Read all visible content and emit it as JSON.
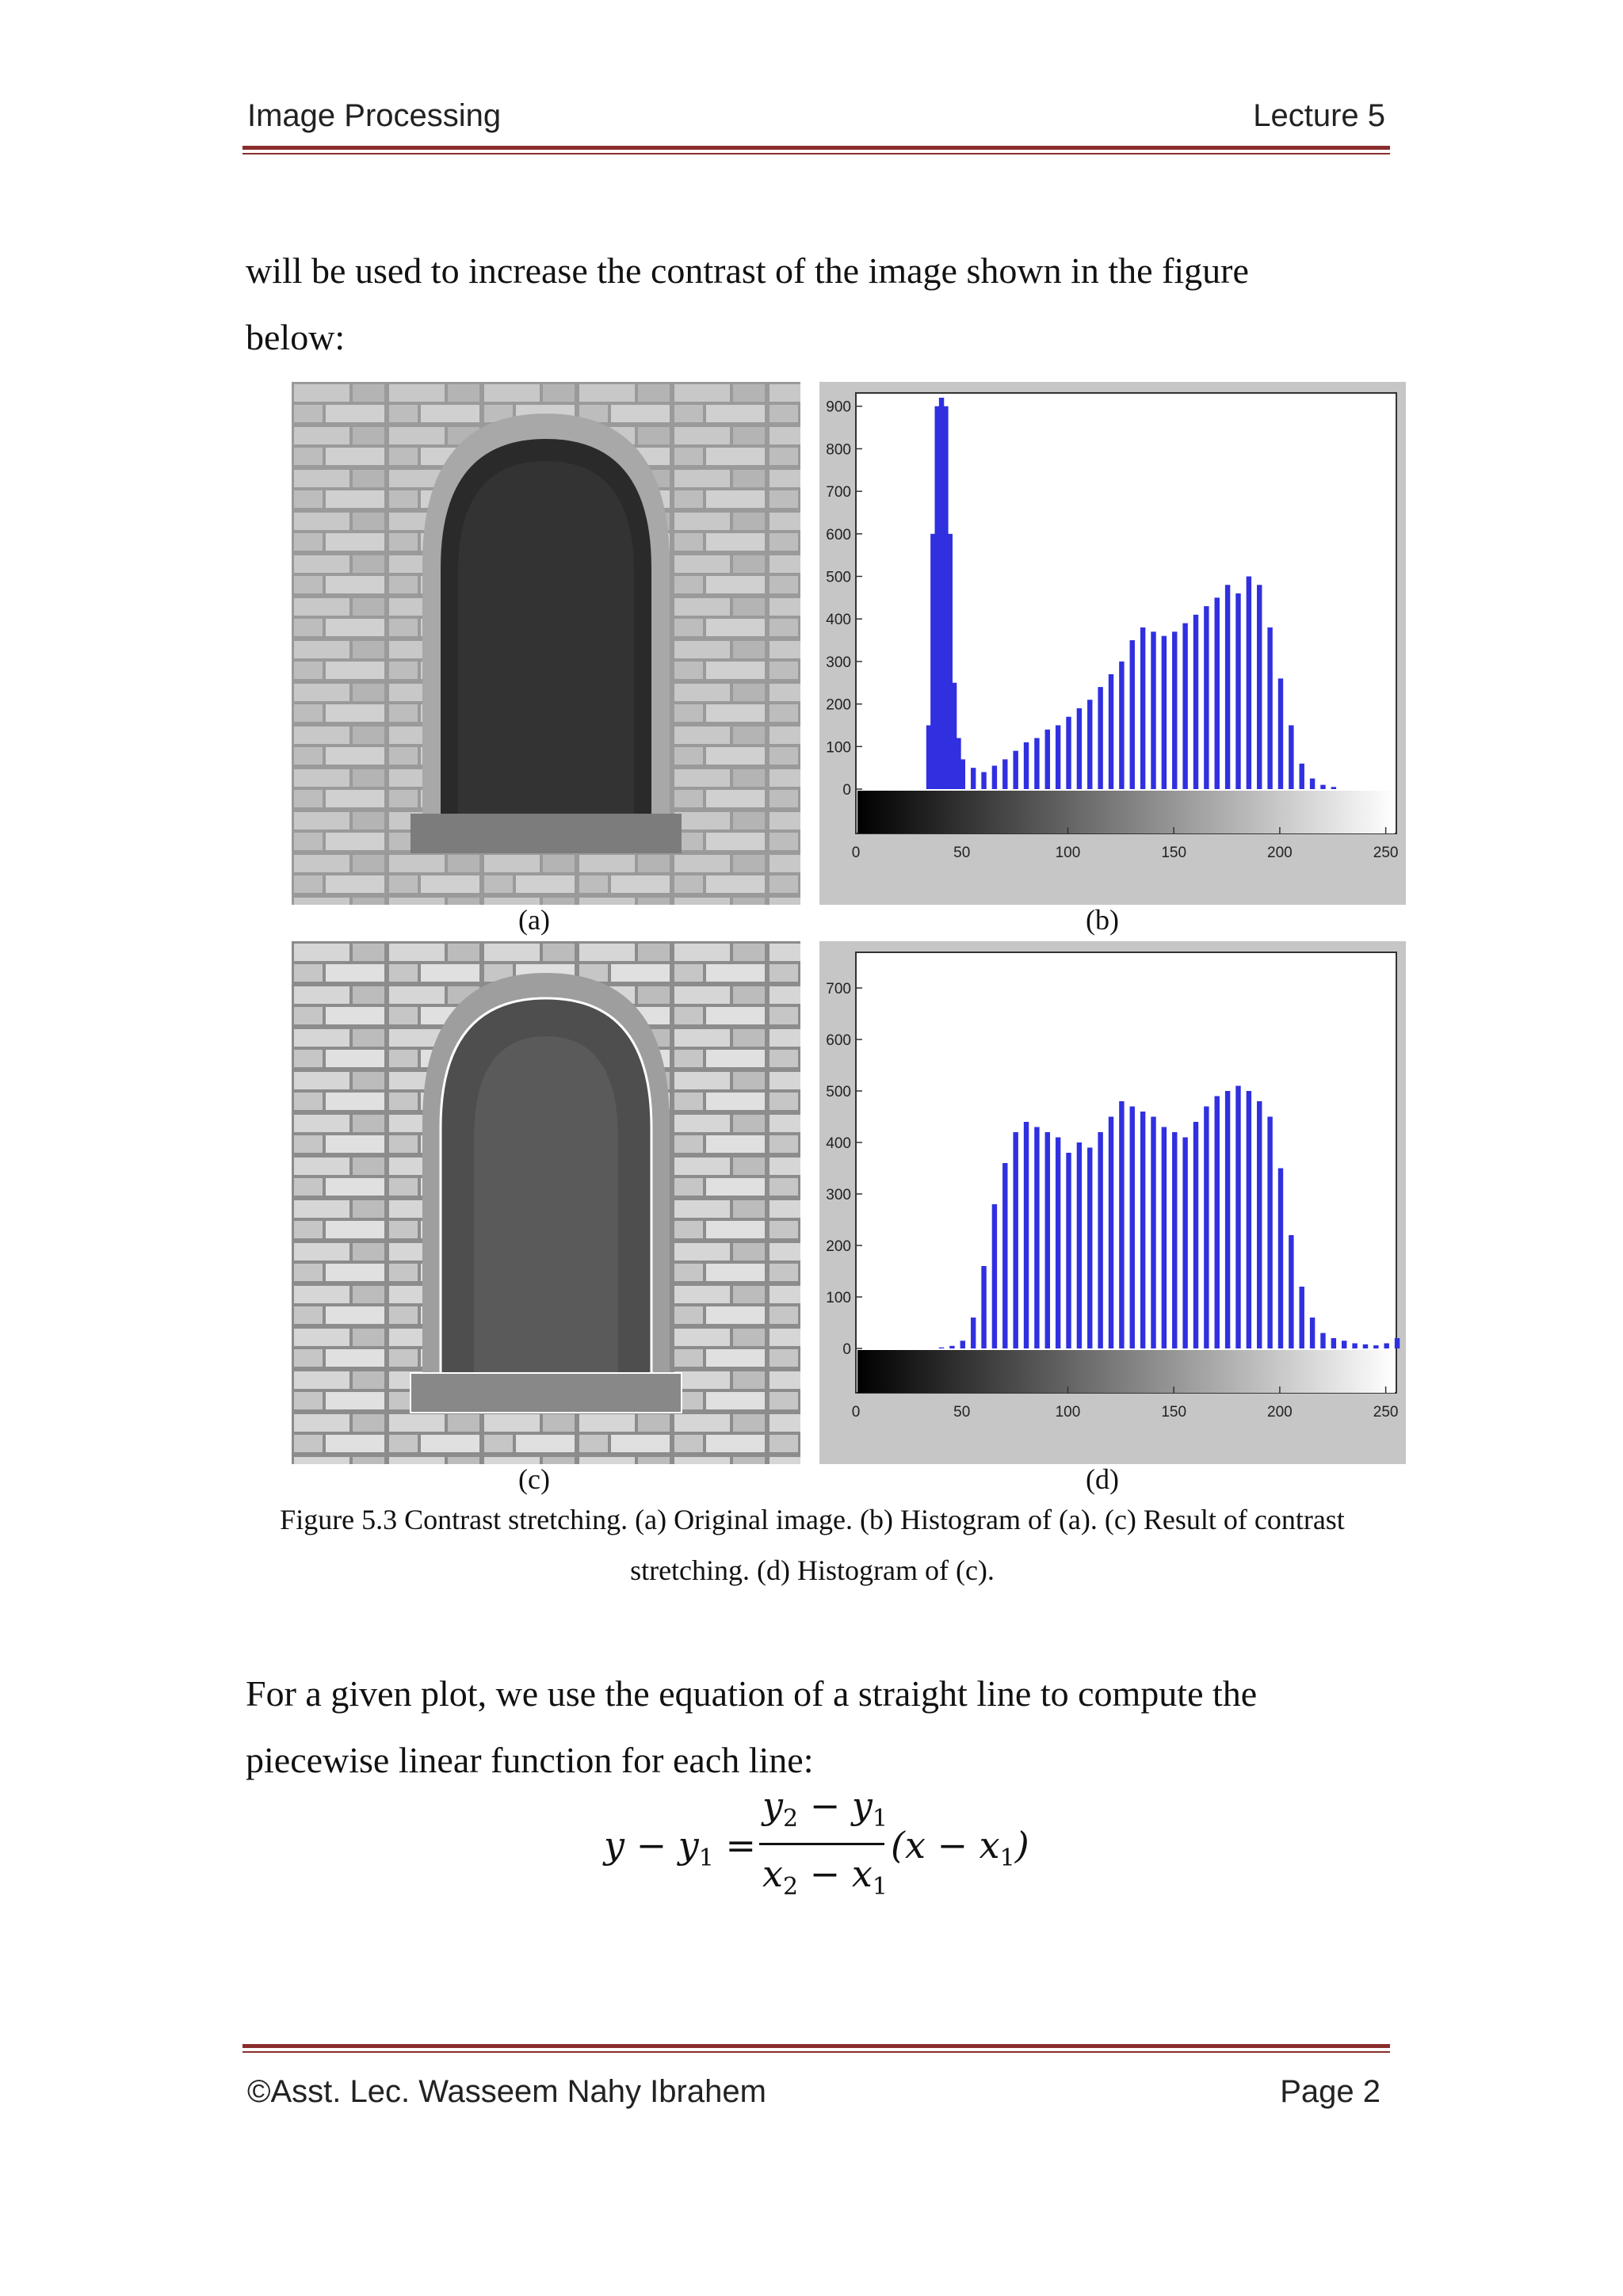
{
  "header": {
    "left": "Image Processing",
    "right": "Lecture 5"
  },
  "intro": {
    "line1": "will be used to increase the contrast of the image shown in the figure",
    "line2": "below:"
  },
  "subfigures": {
    "a": "(a)",
    "b": "(b)",
    "c": "(c)",
    "d": "(d)"
  },
  "caption": {
    "line1": "Figure 5.3 Contrast stretching. (a) Original image. (b) Histogram of (a). (c) Result of contrast",
    "line2": "stretching. (d) Histogram of (c)."
  },
  "body": {
    "line1": "For a given plot, we use the equation of a straight line to compute the",
    "line2": "piecewise linear function for each line:"
  },
  "equation": {
    "lhs_y": "y",
    "lhs_minus": "−",
    "lhs_y1": "y",
    "sub1": "1",
    "equals": "=",
    "num_y2": "y",
    "sub2": "2",
    "num_minus": "−",
    "num_y1": "y",
    "num_sub1": "1",
    "den_x2": "x",
    "den_sub2": "2",
    "den_minus": "−",
    "den_x1": "x",
    "den_sub1": "1",
    "rhs": "(x − x",
    "rhs_sub": "1",
    "rhs_close": ")"
  },
  "footer": {
    "left": "©Asst. Lec. Wasseem Nahy Ibrahem",
    "right": "Page 2"
  },
  "chart_data": [
    {
      "type": "bar",
      "bar_color": "#3030e0",
      "xlim": [
        0,
        255
      ],
      "ylim": [
        0,
        920
      ],
      "xticks": [
        "0",
        "50",
        "100",
        "150",
        "200",
        "250"
      ],
      "yticks": [
        "0",
        "100",
        "200",
        "300",
        "400",
        "500",
        "600",
        "700",
        "800",
        "900"
      ],
      "x": [
        32,
        34,
        36,
        38,
        40,
        42,
        44,
        46,
        48,
        50,
        55,
        60,
        65,
        70,
        75,
        80,
        85,
        90,
        95,
        100,
        105,
        110,
        115,
        120,
        125,
        130,
        135,
        140,
        145,
        150,
        155,
        160,
        165,
        170,
        175,
        180,
        185,
        190,
        195,
        200,
        205,
        210,
        215,
        220,
        225,
        230
      ],
      "values": [
        0,
        150,
        600,
        900,
        920,
        900,
        600,
        250,
        120,
        70,
        50,
        40,
        55,
        70,
        90,
        110,
        120,
        140,
        150,
        170,
        190,
        210,
        240,
        270,
        300,
        350,
        380,
        370,
        360,
        370,
        390,
        410,
        430,
        450,
        480,
        460,
        500,
        480,
        380,
        260,
        150,
        60,
        25,
        10,
        5,
        0
      ]
    },
    {
      "type": "bar",
      "bar_color": "#3030e0",
      "xlim": [
        0,
        255
      ],
      "ylim": [
        0,
        760
      ],
      "xticks": [
        "0",
        "50",
        "100",
        "150",
        "200",
        "250"
      ],
      "yticks": [
        "0",
        "100",
        "200",
        "300",
        "400",
        "500",
        "600",
        "700"
      ],
      "x": [
        40,
        45,
        50,
        55,
        60,
        65,
        70,
        75,
        80,
        85,
        90,
        95,
        100,
        105,
        110,
        115,
        120,
        125,
        130,
        135,
        140,
        145,
        150,
        155,
        160,
        165,
        170,
        175,
        180,
        185,
        190,
        195,
        200,
        205,
        210,
        215,
        220,
        225,
        230,
        235,
        240,
        245,
        250,
        255
      ],
      "values": [
        2,
        5,
        15,
        60,
        160,
        280,
        360,
        420,
        440,
        430,
        420,
        410,
        380,
        400,
        390,
        420,
        450,
        480,
        470,
        460,
        450,
        430,
        420,
        410,
        440,
        470,
        490,
        500,
        510,
        500,
        480,
        450,
        350,
        220,
        120,
        60,
        30,
        20,
        15,
        10,
        8,
        6,
        10,
        20
      ]
    }
  ]
}
